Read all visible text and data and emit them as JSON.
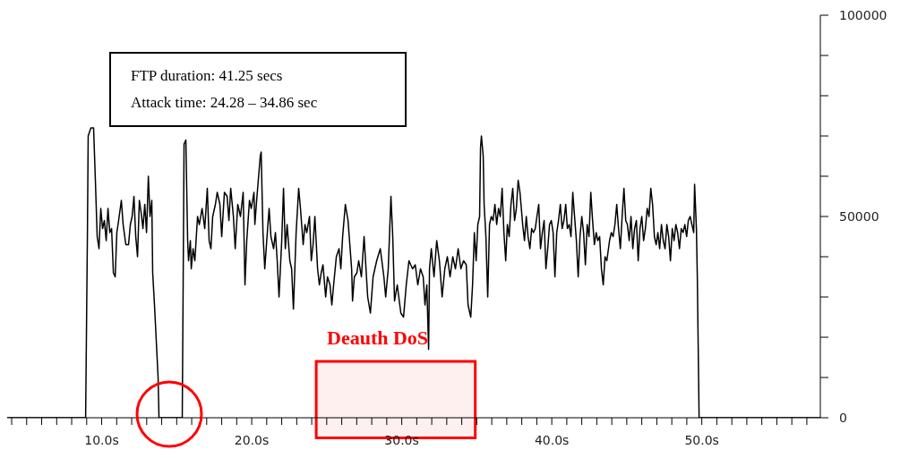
{
  "chart_data": {
    "type": "line",
    "annotations": [
      "FTP duration: 41.25 secs",
      "Attack time: 24.28 – 34.86 sec"
    ],
    "bands": [
      {
        "axis": "x",
        "from": 24.3,
        "to": 34.9,
        "label": "Deauth DoS",
        "color": "#ff0000"
      }
    ],
    "series": [
      {
        "color": "#000000",
        "x": [
          3.7,
          8.93,
          9.05,
          9.1,
          9.28,
          9.46,
          9.58,
          9.7,
          9.82,
          9.94,
          10.06,
          10.18,
          10.3,
          10.42,
          10.54,
          10.66,
          10.78,
          10.9,
          11.01,
          11.13,
          11.31,
          11.43,
          11.61,
          11.79,
          11.91,
          12.03,
          12.15,
          12.27,
          12.39,
          12.51,
          12.63,
          12.75,
          12.87,
          12.99,
          13.11,
          13.22,
          13.34,
          13.4,
          13.52,
          13.76,
          13.82,
          15.37,
          15.43,
          15.49,
          15.61,
          15.73,
          15.79,
          15.91,
          15.97,
          16.09,
          16.21,
          16.39,
          16.51,
          16.69,
          16.87,
          17.04,
          17.16,
          17.28,
          17.4,
          17.58,
          17.7,
          17.88,
          18.0,
          18.18,
          18.36,
          18.48,
          18.6,
          18.78,
          18.9,
          19.07,
          19.25,
          19.43,
          19.55,
          19.67,
          19.85,
          19.97,
          20.15,
          20.21,
          20.33,
          20.57,
          20.63,
          20.75,
          20.87,
          21.04,
          21.16,
          21.28,
          21.46,
          21.58,
          21.7,
          21.82,
          22.0,
          22.12,
          22.24,
          22.36,
          22.54,
          22.66,
          22.78,
          22.96,
          23.13,
          23.25,
          23.43,
          23.55,
          23.67,
          23.85,
          23.97,
          24.09,
          24.21,
          24.39,
          24.51,
          24.63,
          24.75,
          24.93,
          25.05,
          25.22,
          25.34,
          25.46,
          25.64,
          25.82,
          25.94,
          26.06,
          26.24,
          26.42,
          26.54,
          26.66,
          26.72,
          26.84,
          27.01,
          27.13,
          27.31,
          27.49,
          27.73,
          27.91,
          28.09,
          28.33,
          28.57,
          28.81,
          28.93,
          29.1,
          29.28,
          29.4,
          29.52,
          29.7,
          29.94,
          30.12,
          30.3,
          30.48,
          30.72,
          30.9,
          31.07,
          31.25,
          31.43,
          31.55,
          31.67,
          31.79,
          31.85,
          31.97,
          32.15,
          32.33,
          32.51,
          32.69,
          32.87,
          33.04,
          33.22,
          33.4,
          33.58,
          33.76,
          33.94,
          34.12,
          34.3,
          34.42,
          34.6,
          34.72,
          34.84,
          34.96,
          35.07,
          35.19,
          35.25,
          35.31,
          35.43,
          35.49,
          35.61,
          35.73,
          35.85,
          35.97,
          36.09,
          36.21,
          36.33,
          36.45,
          36.57,
          36.69,
          36.81,
          36.93,
          37.04,
          37.16,
          37.28,
          37.4,
          37.52,
          37.64,
          37.76,
          37.88,
          38.06,
          38.18,
          38.3,
          38.42,
          38.54,
          38.66,
          38.78,
          38.9,
          39.01,
          39.13,
          39.25,
          39.37,
          39.49,
          39.61,
          39.73,
          39.85,
          39.97,
          40.09,
          40.21,
          40.33,
          40.45,
          40.57,
          40.69,
          40.81,
          40.93,
          41.04,
          41.16,
          41.28,
          41.4,
          41.52,
          41.64,
          41.76,
          41.88,
          42.0,
          42.12,
          42.24,
          42.36,
          42.48,
          42.6,
          42.72,
          42.84,
          42.96,
          43.07,
          43.19,
          43.31,
          43.43,
          43.55,
          43.67,
          43.85,
          43.97,
          44.09,
          44.21,
          44.33,
          44.45,
          44.57,
          44.69,
          44.81,
          44.93,
          45.04,
          45.16,
          45.28,
          45.4,
          45.52,
          45.64,
          45.76,
          45.88,
          46.0,
          46.12,
          46.24,
          46.36,
          46.48,
          46.6,
          46.72,
          46.84,
          46.96,
          47.07,
          47.19,
          47.31,
          47.43,
          47.55,
          47.67,
          47.79,
          47.91,
          48.03,
          48.15,
          48.27,
          48.39,
          48.51,
          48.63,
          48.75,
          48.87,
          48.99,
          49.1,
          49.22,
          49.34,
          49.46,
          49.52,
          49.64,
          49.7,
          49.82,
          57.9
        ],
        "values": [
          0,
          0,
          46000,
          70000,
          72000,
          72000,
          59000,
          45000,
          42000,
          52000,
          47000,
          49000,
          44000,
          52000,
          46000,
          47000,
          36000,
          35000,
          46000,
          49000,
          54000,
          48000,
          43000,
          43000,
          48000,
          50000,
          55000,
          45000,
          40000,
          54000,
          51000,
          47000,
          53000,
          46000,
          60000,
          50000,
          54000,
          36000,
          28000,
          10000,
          0,
          0,
          33000,
          68000,
          69000,
          44000,
          39000,
          44000,
          37000,
          42000,
          39000,
          50000,
          48000,
          52000,
          47000,
          57000,
          44000,
          42000,
          50000,
          53000,
          56000,
          53000,
          45000,
          56000,
          55000,
          49000,
          57000,
          50000,
          42000,
          53000,
          50000,
          56000,
          33000,
          44000,
          54000,
          52000,
          56000,
          48000,
          54000,
          65000,
          66000,
          46000,
          37000,
          46000,
          52000,
          45000,
          42000,
          46000,
          39000,
          30000,
          44000,
          57000,
          42000,
          48000,
          39000,
          37000,
          27000,
          46000,
          57000,
          52000,
          43000,
          48000,
          46000,
          50000,
          39000,
          43000,
          50000,
          37000,
          33000,
          36000,
          38000,
          30000,
          35000,
          33000,
          28000,
          33000,
          40000,
          42000,
          37000,
          45000,
          53000,
          49000,
          43000,
          37000,
          29000,
          35000,
          36000,
          39000,
          35000,
          45000,
          30000,
          26000,
          35000,
          39000,
          42000,
          35000,
          30000,
          37000,
          55000,
          45000,
          29000,
          33000,
          26000,
          25000,
          33000,
          39000,
          37000,
          38000,
          33000,
          37000,
          35000,
          28000,
          33000,
          17000,
          37000,
          42000,
          35000,
          44000,
          39000,
          30000,
          37000,
          40000,
          35000,
          40000,
          37000,
          42000,
          37000,
          39000,
          38000,
          28000,
          25000,
          33000,
          46000,
          39000,
          48000,
          50000,
          67000,
          70000,
          65000,
          53000,
          45000,
          30000,
          48000,
          50000,
          49000,
          53000,
          48000,
          52000,
          50000,
          57000,
          46000,
          39000,
          48000,
          45000,
          53000,
          57000,
          49000,
          52000,
          59000,
          56000,
          48000,
          44000,
          50000,
          45000,
          42000,
          47000,
          46000,
          47000,
          50000,
          53000,
          42000,
          46000,
          49000,
          37000,
          42000,
          48000,
          49000,
          46000,
          35000,
          46000,
          49000,
          53000,
          47000,
          49000,
          53000,
          47000,
          48000,
          45000,
          56000,
          50000,
          44000,
          35000,
          45000,
          50000,
          46000,
          38000,
          48000,
          45000,
          56000,
          49000,
          43000,
          46000,
          44000,
          45000,
          37000,
          33000,
          40000,
          39000,
          44000,
          46000,
          45000,
          48000,
          53000,
          47000,
          42000,
          50000,
          57000,
          49000,
          48000,
          44000,
          50000,
          42000,
          47000,
          49000,
          39000,
          47000,
          50000,
          44000,
          47000,
          52000,
          50000,
          57000,
          53000,
          45000,
          43000,
          46000,
          42000,
          48000,
          44000,
          42000,
          48000,
          45000,
          39000,
          47000,
          44000,
          48000,
          46000,
          42000,
          47000,
          46000,
          48000,
          45000,
          49000,
          50000,
          48000,
          46000,
          58000,
          47000,
          35000,
          0,
          0
        ]
      }
    ],
    "xlim": [
      3.7,
      57.9
    ],
    "xticks": [
      {
        "value": 4,
        "label": null
      },
      {
        "value": 5,
        "label": null
      },
      {
        "value": 6,
        "label": null
      },
      {
        "value": 7,
        "label": null
      },
      {
        "value": 8,
        "label": null
      },
      {
        "value": 9,
        "label": null
      },
      {
        "value": 10,
        "label": "10.0s"
      },
      {
        "value": 11,
        "label": null
      },
      {
        "value": 12,
        "label": null
      },
      {
        "value": 13,
        "label": null
      },
      {
        "value": 14,
        "label": null
      },
      {
        "value": 15,
        "label": null
      },
      {
        "value": 16,
        "label": null
      },
      {
        "value": 17,
        "label": null
      },
      {
        "value": 18,
        "label": null
      },
      {
        "value": 19,
        "label": null
      },
      {
        "value": 20,
        "label": "20.0s"
      },
      {
        "value": 21,
        "label": null
      },
      {
        "value": 22,
        "label": null
      },
      {
        "value": 23,
        "label": null
      },
      {
        "value": 24,
        "label": null
      },
      {
        "value": 25,
        "label": null
      },
      {
        "value": 26,
        "label": null
      },
      {
        "value": 27,
        "label": null
      },
      {
        "value": 28,
        "label": null
      },
      {
        "value": 29,
        "label": null
      },
      {
        "value": 30,
        "label": "30.0s"
      },
      {
        "value": 31,
        "label": null
      },
      {
        "value": 32,
        "label": null
      },
      {
        "value": 33,
        "label": null
      },
      {
        "value": 34,
        "label": null
      },
      {
        "value": 35,
        "label": null
      },
      {
        "value": 36,
        "label": null
      },
      {
        "value": 37,
        "label": null
      },
      {
        "value": 38,
        "label": null
      },
      {
        "value": 39,
        "label": null
      },
      {
        "value": 40,
        "label": "40.0s"
      },
      {
        "value": 41,
        "label": null
      },
      {
        "value": 42,
        "label": null
      },
      {
        "value": 43,
        "label": null
      },
      {
        "value": 44,
        "label": null
      },
      {
        "value": 45,
        "label": null
      },
      {
        "value": 46,
        "label": null
      },
      {
        "value": 47,
        "label": null
      },
      {
        "value": 48,
        "label": null
      },
      {
        "value": 49,
        "label": null
      },
      {
        "value": 50,
        "label": "50.0s"
      },
      {
        "value": 51,
        "label": null
      },
      {
        "value": 52,
        "label": null
      },
      {
        "value": 53,
        "label": null
      },
      {
        "value": 54,
        "label": null
      },
      {
        "value": 55,
        "label": null
      },
      {
        "value": 56,
        "label": null
      },
      {
        "value": 57,
        "label": null
      }
    ],
    "ylim": [
      0,
      100000
    ],
    "yticks": [
      0,
      {
        "value": 10000,
        "label": null
      },
      {
        "value": 20000,
        "label": null
      },
      {
        "value": 30000,
        "label": null
      },
      {
        "value": 40000,
        "label": null
      },
      50000,
      {
        "value": 60000,
        "label": null
      },
      {
        "value": 70000,
        "label": null
      },
      {
        "value": 80000,
        "label": null
      },
      {
        "value": 90000,
        "label": null
      },
      100000
    ],
    "grid": false,
    "marker": "none",
    "line_style": "solid"
  }
}
